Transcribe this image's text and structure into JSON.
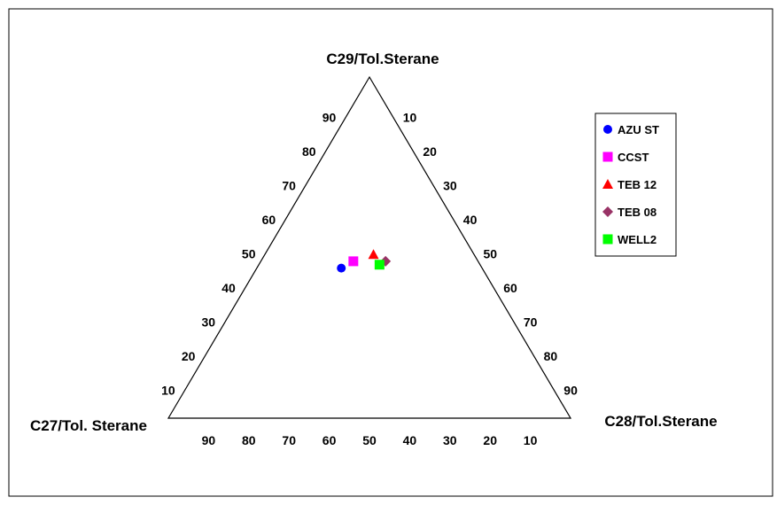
{
  "chart_data": {
    "type": "scatter",
    "subtype": "ternary",
    "title": "",
    "vertices": {
      "top": "C29/Tol.Sterane",
      "left": "C27/Tol. Sterane",
      "right": "C28/Tol.Sterane"
    },
    "ticks": [
      10,
      20,
      30,
      40,
      50,
      60,
      70,
      80,
      90
    ],
    "legend_position": "right",
    "grid": false,
    "series": [
      {
        "name": "AZU ST",
        "marker": "circle",
        "color": "#0000ff",
        "values": {
          "C27": 35,
          "C28": 21,
          "C29": 44
        }
      },
      {
        "name": "CCST",
        "marker": "square",
        "color": "#ff00ff",
        "values": {
          "C27": 31,
          "C28": 23,
          "C29": 46
        }
      },
      {
        "name": "TEB 12",
        "marker": "triangle",
        "color": "#ff0000",
        "values": {
          "C27": 25,
          "C28": 27,
          "C29": 48
        }
      },
      {
        "name": "TEB 08",
        "marker": "diamond",
        "color": "#993366",
        "values": {
          "C27": 23,
          "C28": 31,
          "C29": 46
        }
      },
      {
        "name": "WELL2",
        "marker": "square",
        "color": "#00ff00",
        "values": {
          "C27": 25,
          "C28": 30,
          "C29": 45
        }
      }
    ]
  }
}
